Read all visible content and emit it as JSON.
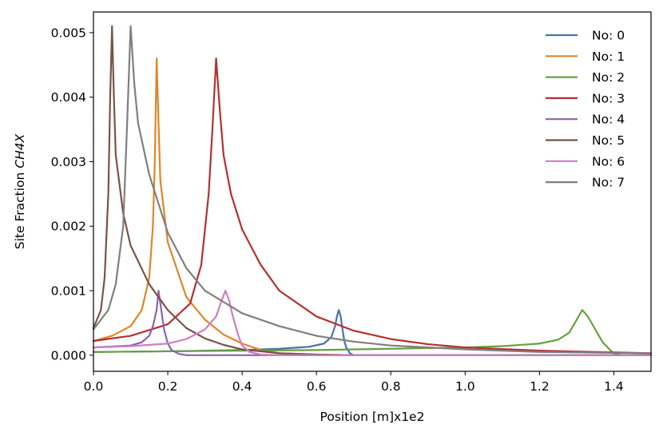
{
  "chart_data": {
    "type": "line",
    "title": "",
    "xlabel": "Position [m]x1e2",
    "ylabel_prefix": "Site Fraction ",
    "ylabel_species": "CH4X",
    "xlim": [
      0.0,
      1.5
    ],
    "ylim": [
      -0.00025,
      0.00532
    ],
    "x_ticks": [
      0.0,
      0.2,
      0.4,
      0.6,
      0.8,
      1.0,
      1.2,
      1.4
    ],
    "x_tick_labels": [
      "0.0",
      "0.2",
      "0.4",
      "0.6",
      "0.8",
      "1.0",
      "1.2",
      "1.4"
    ],
    "y_ticks": [
      0.0,
      0.001,
      0.002,
      0.003,
      0.004,
      0.005
    ],
    "y_tick_labels": [
      "0.000",
      "0.001",
      "0.002",
      "0.003",
      "0.004",
      "0.005"
    ],
    "grid": false,
    "legend_position": "top-right",
    "series": [
      {
        "name": "No: 0",
        "color": "#4a72a8",
        "points": [
          [
            0,
            5e-05
          ],
          [
            0.2,
            6e-05
          ],
          [
            0.4,
            8e-05
          ],
          [
            0.5,
            0.0001
          ],
          [
            0.58,
            0.00013
          ],
          [
            0.62,
            0.00018
          ],
          [
            0.64,
            0.00028
          ],
          [
            0.65,
            0.00045
          ],
          [
            0.655,
            0.0006
          ],
          [
            0.66,
            0.0007
          ],
          [
            0.665,
            0.0006
          ],
          [
            0.67,
            0.0004
          ],
          [
            0.675,
            0.00022
          ],
          [
            0.68,
            0.00012
          ],
          [
            0.69,
            3e-05
          ],
          [
            0.7,
            0.0
          ],
          [
            0.8,
            0.0
          ],
          [
            1.5,
            0.0
          ]
        ]
      },
      {
        "name": "No: 1",
        "color": "#e08628",
        "points": [
          [
            0,
            0.00022
          ],
          [
            0.05,
            0.0003
          ],
          [
            0.1,
            0.00045
          ],
          [
            0.13,
            0.0007
          ],
          [
            0.15,
            0.0012
          ],
          [
            0.16,
            0.002
          ],
          [
            0.165,
            0.003
          ],
          [
            0.17,
            0.0046
          ],
          [
            0.175,
            0.0036
          ],
          [
            0.18,
            0.0027
          ],
          [
            0.2,
            0.00175
          ],
          [
            0.25,
            0.0009
          ],
          [
            0.3,
            0.00055
          ],
          [
            0.35,
            0.00032
          ],
          [
            0.4,
            0.00018
          ],
          [
            0.45,
            8e-05
          ],
          [
            0.5,
            3e-05
          ],
          [
            0.6,
            1e-05
          ],
          [
            0.7,
            0.0
          ],
          [
            1.5,
            0.0
          ]
        ]
      },
      {
        "name": "No: 2",
        "color": "#67a040",
        "points": [
          [
            0,
            5e-05
          ],
          [
            0.2,
            6e-05
          ],
          [
            0.4,
            7e-05
          ],
          [
            0.6,
            8e-05
          ],
          [
            0.8,
            0.0001
          ],
          [
            1.0,
            0.00012
          ],
          [
            1.1,
            0.00014
          ],
          [
            1.2,
            0.00018
          ],
          [
            1.25,
            0.00024
          ],
          [
            1.28,
            0.00035
          ],
          [
            1.3,
            0.00055
          ],
          [
            1.315,
            0.0007
          ],
          [
            1.33,
            0.0006
          ],
          [
            1.35,
            0.0004
          ],
          [
            1.37,
            0.0002
          ],
          [
            1.39,
            8e-05
          ],
          [
            1.4,
            3e-05
          ],
          [
            1.42,
            0.0
          ],
          [
            1.5,
            0.0
          ]
        ]
      },
      {
        "name": "No: 3",
        "color": "#b2312f",
        "points": [
          [
            0,
            0.00022
          ],
          [
            0.1,
            0.0003
          ],
          [
            0.2,
            0.00048
          ],
          [
            0.26,
            0.0008
          ],
          [
            0.29,
            0.0014
          ],
          [
            0.31,
            0.0025
          ],
          [
            0.32,
            0.0035
          ],
          [
            0.33,
            0.0046
          ],
          [
            0.34,
            0.0038
          ],
          [
            0.35,
            0.0031
          ],
          [
            0.37,
            0.0025
          ],
          [
            0.4,
            0.00195
          ],
          [
            0.45,
            0.0014
          ],
          [
            0.5,
            0.001
          ],
          [
            0.6,
            0.0006
          ],
          [
            0.7,
            0.00038
          ],
          [
            0.8,
            0.00025
          ],
          [
            0.9,
            0.00017
          ],
          [
            1.0,
            0.00012
          ],
          [
            1.2,
            7e-05
          ],
          [
            1.5,
            3e-05
          ]
        ]
      },
      {
        "name": "No: 4",
        "color": "#8a63b0",
        "points": [
          [
            0,
            0.00012
          ],
          [
            0.1,
            0.00015
          ],
          [
            0.13,
            0.0002
          ],
          [
            0.15,
            0.0003
          ],
          [
            0.16,
            0.00045
          ],
          [
            0.17,
            0.0007
          ],
          [
            0.175,
            0.001
          ],
          [
            0.18,
            0.0008
          ],
          [
            0.19,
            0.0004
          ],
          [
            0.2,
            0.00018
          ],
          [
            0.21,
            8e-05
          ],
          [
            0.23,
            2e-05
          ],
          [
            0.25,
            0.0
          ],
          [
            1.5,
            0.0
          ]
        ]
      },
      {
        "name": "No: 5",
        "color": "#7b5247",
        "points": [
          [
            0,
            0.00042
          ],
          [
            0.02,
            0.0007
          ],
          [
            0.03,
            0.0012
          ],
          [
            0.04,
            0.0025
          ],
          [
            0.045,
            0.004
          ],
          [
            0.05,
            0.0051
          ],
          [
            0.055,
            0.004
          ],
          [
            0.06,
            0.0031
          ],
          [
            0.08,
            0.0022
          ],
          [
            0.1,
            0.0017
          ],
          [
            0.15,
            0.0011
          ],
          [
            0.2,
            0.0007
          ],
          [
            0.25,
            0.00042
          ],
          [
            0.3,
            0.00026
          ],
          [
            0.35,
            0.00016
          ],
          [
            0.4,
            9e-05
          ],
          [
            0.5,
            3e-05
          ],
          [
            0.6,
            1e-05
          ],
          [
            0.7,
            0.0
          ],
          [
            1.5,
            0.0
          ]
        ]
      },
      {
        "name": "No: 6",
        "color": "#d07ec1",
        "points": [
          [
            0,
            0.00012
          ],
          [
            0.1,
            0.00014
          ],
          [
            0.2,
            0.00018
          ],
          [
            0.25,
            0.00025
          ],
          [
            0.3,
            0.0004
          ],
          [
            0.33,
            0.0006
          ],
          [
            0.345,
            0.00085
          ],
          [
            0.355,
            0.001
          ],
          [
            0.365,
            0.00085
          ],
          [
            0.375,
            0.0006
          ],
          [
            0.39,
            0.0003
          ],
          [
            0.4,
            0.00015
          ],
          [
            0.42,
            5e-05
          ],
          [
            0.45,
            1e-05
          ],
          [
            0.5,
            0.0
          ],
          [
            1.5,
            0.0
          ]
        ]
      },
      {
        "name": "No: 7",
        "color": "#7f7f7f",
        "points": [
          [
            0,
            0.0004
          ],
          [
            0.04,
            0.0007
          ],
          [
            0.06,
            0.0011
          ],
          [
            0.08,
            0.002
          ],
          [
            0.09,
            0.0035
          ],
          [
            0.1,
            0.0051
          ],
          [
            0.11,
            0.0042
          ],
          [
            0.12,
            0.0036
          ],
          [
            0.15,
            0.0028
          ],
          [
            0.2,
            0.0019
          ],
          [
            0.25,
            0.00135
          ],
          [
            0.3,
            0.001
          ],
          [
            0.4,
            0.00065
          ],
          [
            0.5,
            0.00045
          ],
          [
            0.6,
            0.0003
          ],
          [
            0.7,
            0.00021
          ],
          [
            0.8,
            0.00015
          ],
          [
            1.0,
            9e-05
          ],
          [
            1.2,
            5e-05
          ],
          [
            1.5,
            3e-05
          ]
        ]
      }
    ]
  }
}
